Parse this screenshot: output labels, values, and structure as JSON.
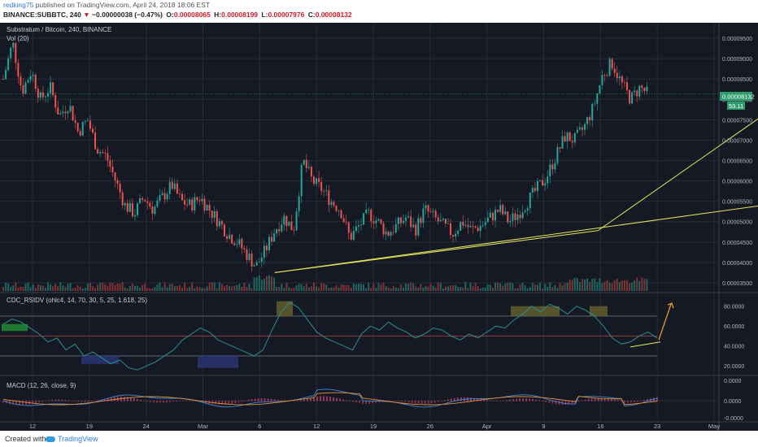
{
  "header": {
    "user": "redking75",
    "published": " published on TradingView.com, April 24, 2018 18:06 EST",
    "symbol": "BINANCE:SUBBTC, 240",
    "change_arrow": "▼",
    "change": "−0.00000038 (−0.47%)",
    "o_label": "O:",
    "o": "0.00008065",
    "h_label": "H:",
    "h": "0.00008199",
    "l_label": "L:",
    "l": "0.00007976",
    "c_label": "C:",
    "c": "0.00008132"
  },
  "chart_data": [
    {
      "type": "candlestick",
      "title": "Substratum / Bitcoin, 240, BINANCE",
      "subtitle": "Vol (20)",
      "ylim": [
        3.3e-06,
        9.8e-06
      ],
      "y_ticks": [
        "0.00009500",
        "0.00009000",
        "0.00008500",
        "0.00008000",
        "0.00007500",
        "0.00007000",
        "0.00006500",
        "0.00006000",
        "0.00005500",
        "0.00005000",
        "0.00004500",
        "0.00004000",
        "0.00003500"
      ],
      "last_price": "0.00008132",
      "volume_label": "53.11",
      "x_ticks": [
        "12",
        "19",
        "24",
        "Mar",
        "6",
        "12",
        "19",
        "26",
        "Apr",
        "9",
        "16",
        "23",
        "May"
      ],
      "price_path": [
        [
          0,
          8.5
        ],
        [
          1,
          9.4
        ],
        [
          2,
          8.2
        ],
        [
          3,
          8.7
        ],
        [
          4,
          8.0
        ],
        [
          5,
          8.3
        ],
        [
          6,
          7.6
        ],
        [
          7,
          7.9
        ],
        [
          8,
          7.2
        ],
        [
          9,
          7.5
        ],
        [
          10,
          6.8
        ],
        [
          11,
          6.6
        ],
        [
          12,
          6.0
        ],
        [
          13,
          5.4
        ],
        [
          14,
          5.2
        ],
        [
          15,
          5.6
        ],
        [
          16,
          5.3
        ],
        [
          17,
          5.6
        ],
        [
          18,
          5.9
        ],
        [
          19,
          5.5
        ],
        [
          20,
          5.4
        ],
        [
          21,
          5.6
        ],
        [
          22,
          5.3
        ],
        [
          23,
          5.0
        ],
        [
          24,
          4.7
        ],
        [
          25,
          4.5
        ],
        [
          26,
          4.2
        ],
        [
          27,
          3.9
        ],
        [
          28,
          4.3
        ],
        [
          29,
          4.8
        ],
        [
          30,
          5.1
        ],
        [
          31,
          4.8
        ],
        [
          32,
          6.5
        ],
        [
          33,
          6.0
        ],
        [
          34,
          5.8
        ],
        [
          35,
          5.5
        ],
        [
          36,
          5.3
        ],
        [
          37,
          4.6
        ],
        [
          38,
          4.9
        ],
        [
          39,
          5.2
        ],
        [
          40,
          5.0
        ],
        [
          41,
          4.7
        ],
        [
          42,
          4.9
        ],
        [
          43,
          5.1
        ],
        [
          44,
          4.8
        ],
        [
          45,
          5.3
        ],
        [
          46,
          5.1
        ],
        [
          47,
          4.9
        ],
        [
          48,
          4.7
        ],
        [
          49,
          5.0
        ],
        [
          50,
          4.8
        ],
        [
          51,
          4.9
        ],
        [
          52,
          5.1
        ],
        [
          53,
          5.3
        ],
        [
          54,
          5.0
        ],
        [
          55,
          5.2
        ],
        [
          56,
          5.5
        ],
        [
          57,
          5.8
        ],
        [
          58,
          6.1
        ],
        [
          59,
          6.6
        ],
        [
          60,
          7.1
        ],
        [
          61,
          7.0
        ],
        [
          62,
          7.3
        ],
        [
          63,
          7.8
        ],
        [
          64,
          8.6
        ],
        [
          65,
          8.9
        ],
        [
          66,
          8.4
        ],
        [
          67,
          8.0
        ],
        [
          68,
          8.3
        ],
        [
          69,
          8.1
        ]
      ],
      "trendlines": [
        {
          "from": [
            29,
            3.75
          ],
          "to": [
            63.5,
            4.78
          ]
        },
        {
          "from": [
            63.5,
            4.78
          ],
          "to": [
            87,
            8.55
          ]
        },
        {
          "from": [
            29,
            3.75
          ],
          "to": [
            89,
            5.65
          ]
        }
      ],
      "grid": true
    },
    {
      "type": "line",
      "title": "CDC_RSIDV (ohlc4, 14, 70, 30, 5, 25, 1.618, 25)",
      "ylim": [
        12,
        92
      ],
      "y_ticks": [
        "80.0000",
        "60.0000",
        "40.0000",
        "20.0000"
      ],
      "levels": [
        70,
        50,
        30
      ],
      "values": [
        62,
        67,
        64,
        58,
        52,
        44,
        48,
        36,
        42,
        30,
        34,
        28,
        22,
        26,
        18,
        16,
        20,
        24,
        30,
        36,
        46,
        52,
        58,
        54,
        46,
        42,
        38,
        34,
        30,
        36,
        56,
        74,
        84,
        78,
        66,
        54,
        48,
        44,
        40,
        36,
        52,
        60,
        56,
        64,
        58,
        54,
        48,
        52,
        58,
        56,
        50,
        46,
        52,
        48,
        54,
        60,
        58,
        66,
        72,
        80,
        74,
        82,
        78,
        72,
        80,
        76,
        70,
        60,
        48,
        42,
        44,
        50,
        54,
        48
      ],
      "trend": {
        "from": [
          67,
          39
        ],
        "to": [
          71,
          44
        ]
      }
    },
    {
      "type": "line",
      "title": "MACD (12, 26, close, 9)",
      "y_ticks": [
        "0.0000",
        "0.0000",
        "-0.0000"
      ]
    }
  ],
  "footer": {
    "created": "Created with",
    "brand": "TradingView"
  },
  "colors": {
    "bg": "#151924",
    "grid": "#262b38",
    "up": "#26a69a",
    "down": "#ef5350",
    "trend": "#e8e85a",
    "rsi": "#2a8f8f",
    "arrow": "#f5a623",
    "price_tag": "#2e9e6e"
  }
}
